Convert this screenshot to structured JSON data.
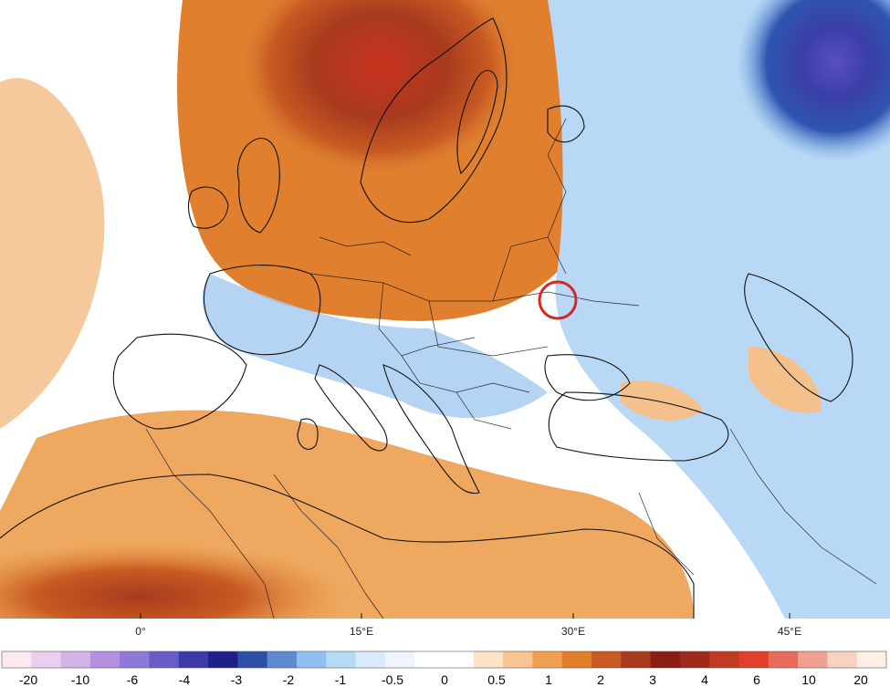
{
  "map": {
    "longitude_labels": [
      "0°",
      "15°E",
      "30°E",
      "45°E"
    ],
    "marker": {
      "shape": "circle",
      "color": "#d62728",
      "near": "30°E"
    }
  },
  "colorbar": {
    "labels": [
      "-20",
      "-10",
      "-6",
      "-4",
      "-3",
      "-2",
      "-1",
      "-0.5",
      "0",
      "0.5",
      "1",
      "2",
      "3",
      "4",
      "6",
      "10",
      "20"
    ],
    "colors": [
      "#fce9f2",
      "#ead0ee",
      "#d2b4e8",
      "#b58fe0",
      "#8f79d8",
      "#6a5cc8",
      "#3d3aa8",
      "#1f1f8a",
      "#2e4fa6",
      "#5f8ad0",
      "#8ec0f0",
      "#b6d9f7",
      "#d8eafb",
      "#eef5fd",
      "#ffffff",
      "#ffffff",
      "#fde3c6",
      "#f8c48f",
      "#f0a050",
      "#e07e2a",
      "#c85a22",
      "#a83a1e",
      "#8a1e14",
      "#9e2a1c",
      "#c03a24",
      "#e0402a",
      "#e86a5a",
      "#f0a090",
      "#f8d2c0",
      "#fdeee6"
    ]
  }
}
